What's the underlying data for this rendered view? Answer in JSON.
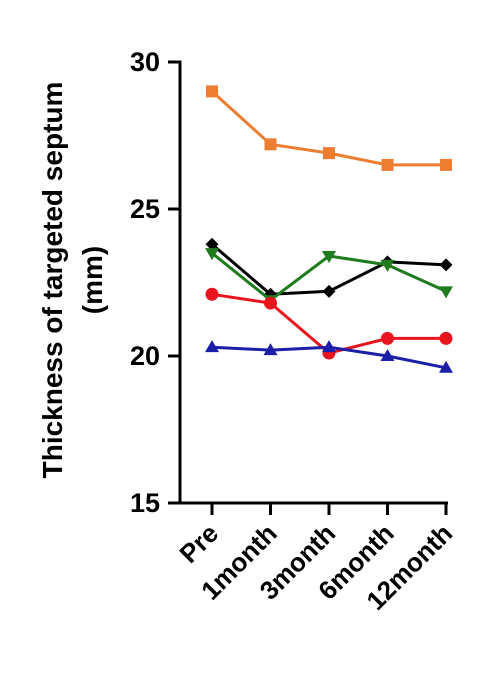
{
  "chart_data": {
    "type": "line",
    "xlabel": "",
    "ylabel_line1": "Thickness of targeted septum",
    "ylabel_line2": "(mm)",
    "categories": [
      "Pre",
      "1month",
      "3month",
      "6month",
      "12month"
    ],
    "ylim": [
      15,
      30
    ],
    "yticks": [
      15,
      20,
      25,
      30
    ],
    "grid": false,
    "series": [
      {
        "color": "#ED7D31",
        "marker": "square",
        "values": [
          29.0,
          27.2,
          26.9,
          26.5,
          26.5
        ]
      },
      {
        "color": "#000000",
        "marker": "diamond",
        "values": [
          23.8,
          22.1,
          22.2,
          23.2,
          23.1
        ]
      },
      {
        "color": "#1E7B1E",
        "marker": "triangle-down",
        "values": [
          23.5,
          21.9,
          23.4,
          23.1,
          22.2
        ]
      },
      {
        "color": "#E8141E",
        "marker": "circle",
        "values": [
          22.1,
          21.8,
          20.1,
          20.6,
          20.6
        ]
      },
      {
        "color": "#1B1FA8",
        "marker": "triangle-up",
        "values": [
          20.3,
          20.2,
          20.3,
          20.0,
          19.6
        ]
      }
    ]
  }
}
